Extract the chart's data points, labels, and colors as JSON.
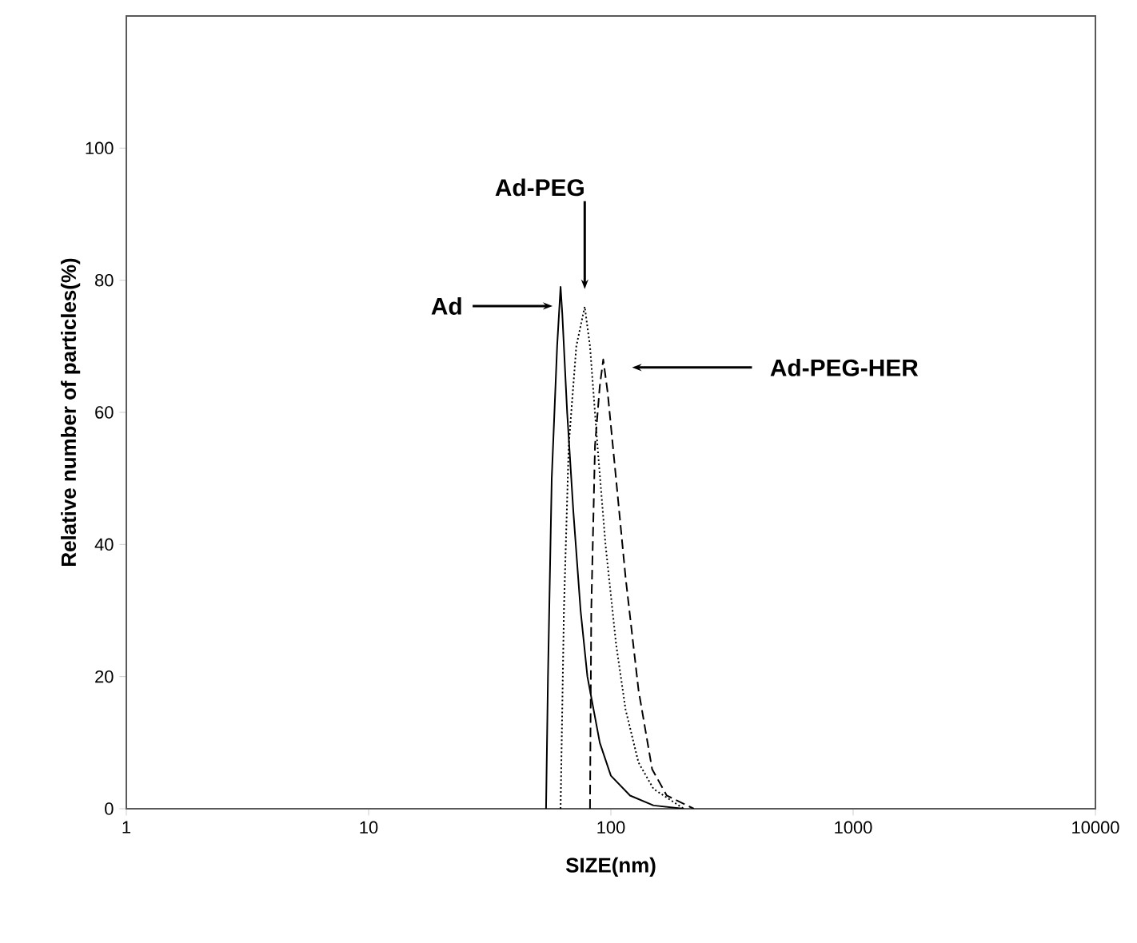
{
  "chart_data": {
    "type": "line",
    "xlabel": "SIZE(nm)",
    "ylabel": "Relative number of particles(%)",
    "log": "x",
    "xlim": [
      1,
      10000
    ],
    "xticks": [
      1,
      10,
      100,
      1000,
      10000
    ],
    "ylim": [
      0,
      120
    ],
    "yticks": [
      0,
      20,
      40,
      60,
      80,
      100
    ],
    "grid": false,
    "series": [
      {
        "color": "#000000",
        "line_style": "solid",
        "x": [
          54,
          55,
          57,
          60,
          62,
          63,
          66,
          70,
          75,
          80,
          90,
          100,
          120,
          150,
          200
        ],
        "values": [
          0,
          20,
          50,
          70,
          79,
          75,
          60,
          45,
          30,
          20,
          10,
          5,
          2,
          0.5,
          0
        ]
      },
      {
        "color": "#000000",
        "line_style": "dotted",
        "x": [
          62,
          64,
          67,
          72,
          78,
          82,
          88,
          95,
          105,
          115,
          130,
          150,
          200
        ],
        "values": [
          0,
          30,
          55,
          70,
          76,
          70,
          55,
          40,
          25,
          15,
          7,
          3,
          0
        ]
      },
      {
        "color": "#000000",
        "line_style": "dashed",
        "x": [
          82,
          83,
          86,
          90,
          93,
          97,
          105,
          115,
          130,
          148,
          170,
          220
        ],
        "values": [
          0,
          30,
          55,
          64,
          68,
          63,
          50,
          35,
          18,
          6,
          2,
          0
        ]
      }
    ],
    "annotations": [
      "Ad",
      "Ad-PEG",
      "Ad-PEG-HER"
    ]
  }
}
